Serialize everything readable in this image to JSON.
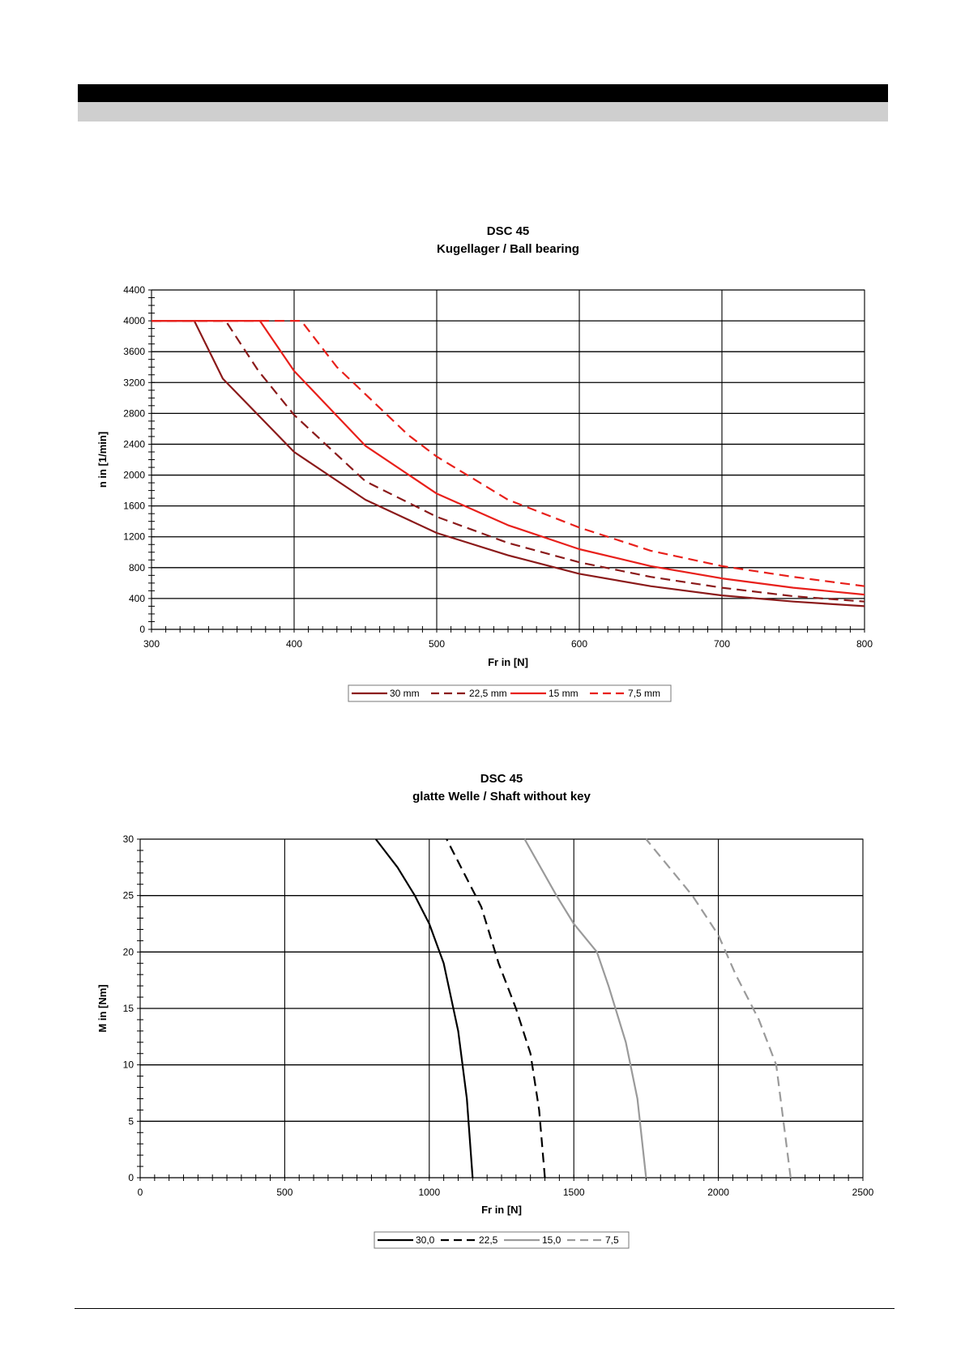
{
  "chart_data": [
    {
      "type": "line",
      "title": "DSC 45",
      "subtitle": "Kugellager / Ball bearing",
      "xlabel": "Fr in [N]",
      "ylabel": "n in [1/min]",
      "xlim": [
        300,
        800
      ],
      "ylim": [
        0,
        4400
      ],
      "xticks": [
        300,
        400,
        500,
        600,
        700,
        800
      ],
      "yticks": [
        0,
        400,
        800,
        1200,
        1600,
        2000,
        2400,
        2800,
        3200,
        3600,
        4000,
        4400
      ],
      "grid": true,
      "legend_position": "bottom",
      "series": [
        {
          "name": "30 mm",
          "color": "#8b1a1a",
          "dash": false,
          "x": [
            300,
            330,
            350,
            400,
            450,
            500,
            550,
            600,
            650,
            700,
            750,
            800
          ],
          "y": [
            4000,
            4000,
            3250,
            2300,
            1680,
            1250,
            960,
            720,
            560,
            440,
            360,
            300
          ]
        },
        {
          "name": "22,5 mm",
          "color": "#8b1a1a",
          "dash": true,
          "x": [
            300,
            352,
            375,
            400,
            450,
            500,
            550,
            600,
            650,
            700,
            750,
            800
          ],
          "y": [
            4000,
            4000,
            3350,
            2780,
            1920,
            1460,
            1120,
            870,
            680,
            540,
            430,
            360
          ]
        },
        {
          "name": "15 mm",
          "color": "#e8201b",
          "dash": false,
          "x": [
            300,
            376,
            400,
            450,
            500,
            550,
            600,
            650,
            700,
            750,
            800
          ],
          "y": [
            4000,
            4000,
            3350,
            2380,
            1760,
            1350,
            1040,
            820,
            660,
            540,
            450
          ]
        },
        {
          "name": "7,5 mm",
          "color": "#e8201b",
          "dash": true,
          "x": [
            300,
            405,
            430,
            480,
            500,
            550,
            600,
            650,
            700,
            750,
            800
          ],
          "y": [
            4000,
            4000,
            3400,
            2520,
            2240,
            1680,
            1320,
            1020,
            820,
            680,
            560
          ]
        }
      ]
    },
    {
      "type": "line",
      "title": "DSC 45",
      "subtitle": "glatte Welle / Shaft without key",
      "xlabel": "Fr in [N]",
      "ylabel": "M in [Nm]",
      "xlim": [
        0,
        2500
      ],
      "ylim": [
        0,
        30
      ],
      "xticks": [
        0,
        500,
        1000,
        1500,
        2000,
        2500
      ],
      "yticks": [
        0,
        5,
        10,
        15,
        20,
        25,
        30
      ],
      "grid": true,
      "legend_position": "bottom",
      "series": [
        {
          "name": "30,0",
          "color": "#000000",
          "dash": false,
          "x": [
            1150,
            1130,
            1100,
            1050,
            1000,
            950,
            890,
            815
          ],
          "y": [
            0,
            7,
            13,
            19,
            22.5,
            25,
            27.5,
            30
          ]
        },
        {
          "name": "22,5",
          "color": "#000000",
          "dash": true,
          "x": [
            1400,
            1380,
            1350,
            1300,
            1240,
            1180,
            1100,
            1060
          ],
          "y": [
            0,
            6,
            11,
            15,
            19,
            24,
            28,
            30
          ]
        },
        {
          "name": "15,0",
          "color": "#9a9a9a",
          "dash": false,
          "x": [
            1750,
            1720,
            1680,
            1620,
            1580,
            1500,
            1440,
            1330
          ],
          "y": [
            0,
            7,
            12,
            17,
            20,
            22.5,
            25,
            30
          ]
        },
        {
          "name": "7,5",
          "color": "#9a9a9a",
          "dash": true,
          "x": [
            2250,
            2230,
            2200,
            2140,
            2060,
            2000,
            1910,
            1750
          ],
          "y": [
            0,
            4,
            10,
            14,
            18,
            21.5,
            25,
            30
          ]
        }
      ]
    }
  ]
}
